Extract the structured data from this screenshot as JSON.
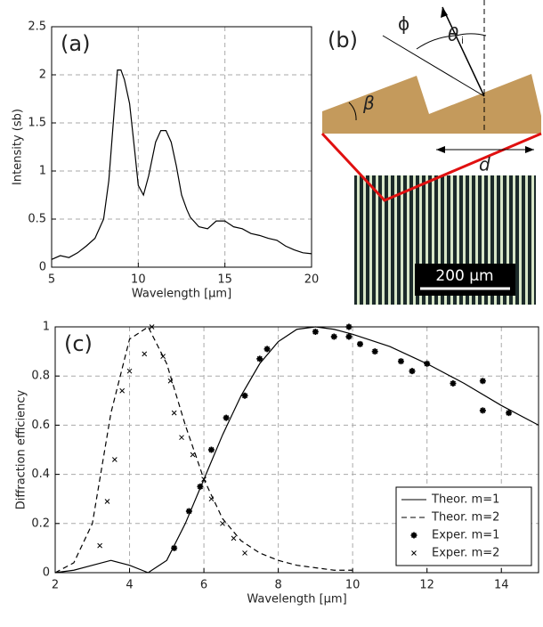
{
  "chart_data": [
    {
      "type": "line",
      "label": "(a)",
      "xlabel": "Wavelength [μm]",
      "ylabel": "Intensity (sb)",
      "xlim": [
        5,
        20
      ],
      "xticks": [
        5,
        10,
        15,
        20
      ],
      "ylim": [
        0,
        2.5
      ],
      "yticks": [
        0,
        0.5,
        1,
        1.5,
        2,
        2.5
      ],
      "grid": true,
      "series": [
        {
          "style": "solid",
          "color": "#000000",
          "x": [
            5,
            5.5,
            6,
            6.5,
            7,
            7.5,
            8,
            8.3,
            8.6,
            8.8,
            9,
            9.2,
            9.5,
            9.8,
            10,
            10.3,
            10.6,
            11,
            11.3,
            11.6,
            11.9,
            12.2,
            12.5,
            12.8,
            13,
            13.5,
            14,
            14.5,
            15,
            15.5,
            16,
            16.5,
            17,
            17.5,
            18,
            18.5,
            19,
            19.5,
            20
          ],
          "values": [
            0.08,
            0.12,
            0.1,
            0.15,
            0.22,
            0.3,
            0.5,
            0.9,
            1.6,
            2.05,
            2.05,
            1.95,
            1.7,
            1.2,
            0.85,
            0.75,
            0.95,
            1.3,
            1.42,
            1.42,
            1.3,
            1.05,
            0.75,
            0.6,
            0.52,
            0.42,
            0.4,
            0.48,
            0.48,
            0.42,
            0.4,
            0.35,
            0.33,
            0.3,
            0.28,
            0.22,
            0.18,
            0.15,
            0.14
          ]
        }
      ]
    },
    {
      "type": "line",
      "label": "(c)",
      "xlabel": "Wavelength [μm]",
      "ylabel": "Diffraction efficiency",
      "xlim": [
        2,
        15
      ],
      "xticks": [
        2,
        4,
        6,
        8,
        10,
        12,
        14
      ],
      "ylim": [
        0,
        1
      ],
      "yticks": [
        0,
        0.2,
        0.4,
        0.6,
        0.8,
        1
      ],
      "grid": true,
      "legend": "lower right",
      "series": [
        {
          "name": "Theor. m=1",
          "style": "solid",
          "color": "#000000",
          "x": [
            2,
            2.5,
            3,
            3.5,
            4,
            4.5,
            5,
            5.5,
            6,
            6.5,
            7,
            7.5,
            8,
            8.5,
            9,
            9.5,
            10,
            11,
            12,
            13,
            14,
            15
          ],
          "values": [
            0,
            0.01,
            0.03,
            0.05,
            0.03,
            0,
            0.05,
            0.2,
            0.38,
            0.56,
            0.72,
            0.85,
            0.94,
            0.99,
            1,
            0.99,
            0.97,
            0.92,
            0.85,
            0.77,
            0.68,
            0.6
          ]
        },
        {
          "name": "Theor. m=2",
          "style": "dashed",
          "color": "#000000",
          "x": [
            2,
            2.5,
            3,
            3.5,
            4,
            4.5,
            5,
            5.5,
            6,
            6.5,
            7,
            7.5,
            8,
            8.5,
            9,
            9.5,
            10
          ],
          "values": [
            0,
            0.04,
            0.2,
            0.65,
            0.95,
            1,
            0.85,
            0.6,
            0.38,
            0.22,
            0.13,
            0.08,
            0.05,
            0.03,
            0.02,
            0.01,
            0.01
          ]
        },
        {
          "name": "Exper. m=1",
          "style": "asterisk",
          "color": "#000000",
          "x": [
            5.2,
            5.6,
            5.9,
            6.2,
            6.6,
            7.1,
            7.5,
            7.7,
            9,
            9.5,
            9.9,
            9.9,
            10.2,
            10.6,
            11.3,
            11.6,
            12,
            12.7,
            13.5,
            13.5,
            14.2
          ],
          "values": [
            0.1,
            0.25,
            0.35,
            0.5,
            0.63,
            0.72,
            0.87,
            0.91,
            0.98,
            0.96,
            1,
            0.96,
            0.93,
            0.9,
            0.86,
            0.82,
            0.85,
            0.77,
            0.78,
            0.66,
            0.65
          ]
        },
        {
          "name": "Exper. m=2",
          "style": "cross",
          "color": "#000000",
          "x": [
            3.2,
            3.4,
            3.6,
            3.8,
            4,
            4.4,
            4.6,
            4.9,
            5.1,
            5.2,
            5.4,
            5.7,
            6,
            6.2,
            6.5,
            6.8,
            7.1
          ],
          "values": [
            0.11,
            0.29,
            0.46,
            0.74,
            0.82,
            0.89,
            1,
            0.88,
            0.78,
            0.65,
            0.55,
            0.48,
            0.38,
            0.3,
            0.2,
            0.14,
            0.08
          ]
        }
      ]
    }
  ],
  "diagram": {
    "label": "(b)",
    "phi": "ϕ",
    "theta": "θ",
    "theta_sub": "i",
    "beta": "β",
    "period": "d",
    "scale_bar": "200 μm"
  }
}
